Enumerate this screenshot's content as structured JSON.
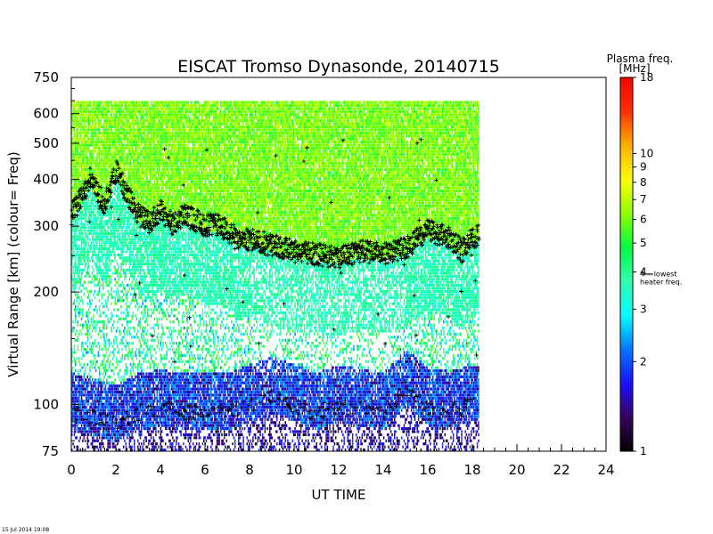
{
  "chart_data": {
    "type": "heatmap",
    "title": "EISCAT Tromso Dynasonde,   20140715",
    "xlabel": "UT TIME",
    "ylabel": "Virtual Range [km]    (colour= Freq)",
    "x_ticks": [
      0,
      2,
      4,
      6,
      8,
      10,
      12,
      14,
      16,
      18,
      20,
      22,
      24
    ],
    "xlim": [
      0,
      24
    ],
    "y_scale": "log",
    "ylim": [
      75,
      750
    ],
    "y_ticks": [
      75,
      100,
      200,
      300,
      400,
      500,
      600,
      750
    ],
    "grid": false,
    "data_extent_hours": [
      0,
      18.3
    ],
    "colorbar": {
      "title": "Plasma freq.",
      "unit": "[MHz]",
      "scale": "log",
      "range": [
        1,
        18
      ],
      "ticks": [
        1,
        2,
        3,
        4,
        5,
        6,
        7,
        8,
        9,
        10,
        18
      ],
      "annotation_value": 4,
      "annotation_text": "4=lowest heater freq.",
      "colors": [
        "#000000",
        "#3a0060",
        "#1a10ff",
        "#0078ff",
        "#00ffff",
        "#30ffb0",
        "#00ff40",
        "#90ff00",
        "#ffff00",
        "#ffb000",
        "#ff3000",
        "#ff0000"
      ]
    },
    "traces": {
      "F_layer_virtual_height_km": {
        "x": [
          0.0,
          0.5,
          0.8,
          1.2,
          1.5,
          2.0,
          2.5,
          3.0,
          3.5,
          4.0,
          4.5,
          5.0,
          5.5,
          6.0,
          6.5,
          7.0,
          7.5,
          8.0,
          9.0,
          10.0,
          11.0,
          12.0,
          13.0,
          14.0,
          15.0,
          16.0,
          17.0,
          17.5,
          18.0
        ],
        "y": [
          320,
          360,
          400,
          360,
          340,
          420,
          360,
          320,
          305,
          330,
          300,
          320,
          310,
          300,
          300,
          290,
          270,
          275,
          265,
          255,
          250,
          245,
          255,
          250,
          260,
          290,
          275,
          255,
          280
        ]
      },
      "E_region_virtual_height_km": {
        "x": [
          0.0,
          1.0,
          2.0,
          3.0,
          4.0,
          5.0,
          6.0,
          7.0,
          9.0,
          10.0,
          11.0,
          12.0,
          13.0,
          14.0,
          15.0,
          16.0,
          17.0,
          18.0
        ],
        "y": [
          95,
          92,
          88,
          95,
          97,
          95,
          96,
          95,
          105,
          100,
          95,
          100,
          97,
          95,
          110,
          98,
          96,
          100
        ]
      }
    }
  },
  "footer": {
    "timestamp": "15 Jul 2014 19:08"
  }
}
